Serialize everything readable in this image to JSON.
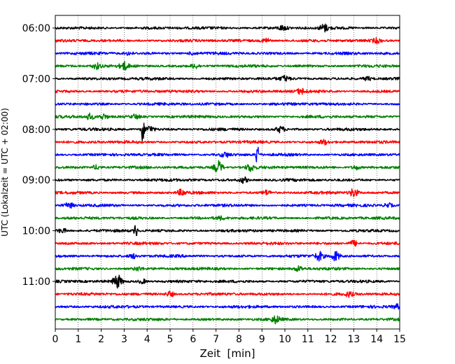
{
  "chart_data": {
    "type": "line",
    "subtype": "helicorder-seismogram",
    "xlabel": "Zeit  [min]",
    "ylabel": "UTC (Lokalzeit = UTC + 02:00)",
    "xlim": [
      0,
      15
    ],
    "x_ticks": [
      0,
      1,
      2,
      3,
      4,
      5,
      6,
      7,
      8,
      9,
      10,
      11,
      12,
      13,
      14,
      15
    ],
    "y_tick_labels": [
      "06:00",
      "07:00",
      "08:00",
      "09:00",
      "10:00",
      "11:00"
    ],
    "traces_per_hour": 4,
    "trace_minutes": 15,
    "grid": "vertical-dotted",
    "legend": "none",
    "trace_colors": [
      "#000000",
      "#ff0000",
      "#0000ff",
      "#008000"
    ],
    "traces": [
      {
        "start": "06:00",
        "color": "#000000",
        "events": [
          {
            "t": 11.7,
            "amp": 0.5
          },
          {
            "t": 9.9,
            "amp": 0.3
          }
        ]
      },
      {
        "start": "06:15",
        "color": "#ff0000",
        "events": [
          {
            "t": 9.2,
            "amp": 0.35
          },
          {
            "t": 14.0,
            "amp": 0.3
          }
        ]
      },
      {
        "start": "06:30",
        "color": "#0000ff",
        "events": [
          {
            "t": 3.2,
            "amp": 0.2
          },
          {
            "t": 6.0,
            "amp": 0.2
          }
        ]
      },
      {
        "start": "06:45",
        "color": "#008000",
        "events": [
          {
            "t": 1.8,
            "amp": 0.4
          },
          {
            "t": 3.0,
            "amp": 0.5
          },
          {
            "t": 6.1,
            "amp": 0.3
          }
        ]
      },
      {
        "start": "07:00",
        "color": "#000000",
        "events": [
          {
            "t": 10.0,
            "amp": 0.3
          },
          {
            "t": 13.6,
            "amp": 0.25
          }
        ]
      },
      {
        "start": "07:15",
        "color": "#ff0000",
        "events": [
          {
            "t": 10.7,
            "amp": 0.35
          }
        ]
      },
      {
        "start": "07:30",
        "color": "#0000ff",
        "events": []
      },
      {
        "start": "07:45",
        "color": "#008000",
        "events": [
          {
            "t": 1.5,
            "amp": 0.4
          },
          {
            "t": 2.1,
            "amp": 0.35
          },
          {
            "t": 3.5,
            "amp": 0.3
          }
        ]
      },
      {
        "start": "08:00",
        "color": "#000000",
        "events": [
          {
            "t": 3.8,
            "amp": 2.0
          },
          {
            "t": 4.1,
            "amp": 0.5
          },
          {
            "t": 9.8,
            "amp": 0.4
          }
        ]
      },
      {
        "start": "08:15",
        "color": "#ff0000",
        "events": [
          {
            "t": 11.7,
            "amp": 0.3
          }
        ]
      },
      {
        "start": "08:30",
        "color": "#0000ff",
        "events": [
          {
            "t": 8.8,
            "amp": 1.9
          },
          {
            "t": 7.4,
            "amp": 0.3
          }
        ]
      },
      {
        "start": "08:45",
        "color": "#008000",
        "events": [
          {
            "t": 7.1,
            "amp": 0.9
          },
          {
            "t": 8.5,
            "amp": 0.5
          },
          {
            "t": 1.8,
            "amp": 0.3
          },
          {
            "t": 13.1,
            "amp": 0.3
          }
        ]
      },
      {
        "start": "09:00",
        "color": "#000000",
        "events": [
          {
            "t": 8.2,
            "amp": 0.4
          }
        ]
      },
      {
        "start": "09:15",
        "color": "#ff0000",
        "events": [
          {
            "t": 13.0,
            "amp": 0.6
          },
          {
            "t": 5.5,
            "amp": 0.4
          },
          {
            "t": 9.2,
            "amp": 0.3
          }
        ]
      },
      {
        "start": "09:30",
        "color": "#0000ff",
        "events": [
          {
            "t": 0.6,
            "amp": 0.35
          },
          {
            "t": 14.5,
            "amp": 0.3
          }
        ]
      },
      {
        "start": "09:45",
        "color": "#008000",
        "events": [
          {
            "t": 7.2,
            "amp": 0.2
          }
        ]
      },
      {
        "start": "10:00",
        "color": "#000000",
        "events": [
          {
            "t": 3.5,
            "amp": 1.2
          },
          {
            "t": 0.3,
            "amp": 0.3
          }
        ]
      },
      {
        "start": "10:15",
        "color": "#ff0000",
        "events": [
          {
            "t": 13.0,
            "amp": 0.4
          }
        ]
      },
      {
        "start": "10:30",
        "color": "#0000ff",
        "events": [
          {
            "t": 11.5,
            "amp": 0.6
          },
          {
            "t": 12.2,
            "amp": 0.7
          },
          {
            "t": 3.4,
            "amp": 0.3
          }
        ]
      },
      {
        "start": "10:45",
        "color": "#008000",
        "events": [
          {
            "t": 10.6,
            "amp": 0.35
          },
          {
            "t": 3.6,
            "amp": 0.25
          }
        ]
      },
      {
        "start": "11:00",
        "color": "#000000",
        "events": [
          {
            "t": 2.7,
            "amp": 0.9
          },
          {
            "t": 3.8,
            "amp": 0.3
          }
        ]
      },
      {
        "start": "11:15",
        "color": "#ff0000",
        "events": [
          {
            "t": 5.0,
            "amp": 0.35
          },
          {
            "t": 12.8,
            "amp": 0.3
          }
        ]
      },
      {
        "start": "11:30",
        "color": "#0000ff",
        "events": [
          {
            "t": 14.9,
            "amp": 0.3
          }
        ]
      },
      {
        "start": "11:45",
        "color": "#008000",
        "events": [
          {
            "t": 9.6,
            "amp": 0.45
          }
        ]
      }
    ]
  }
}
